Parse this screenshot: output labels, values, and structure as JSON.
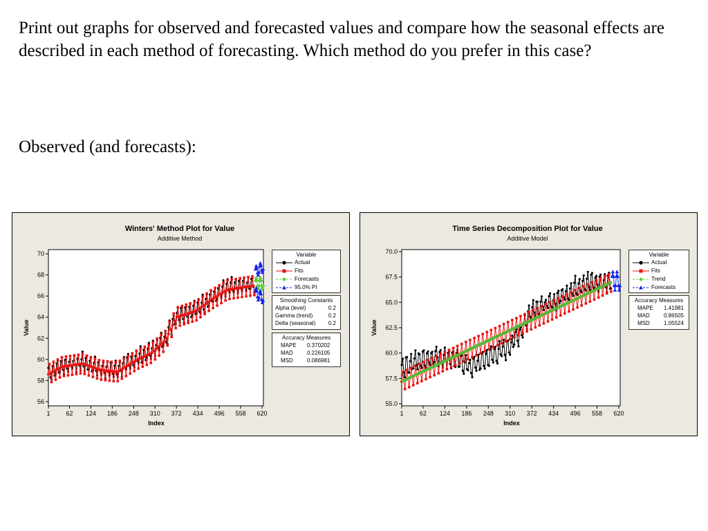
{
  "text": {
    "question": "Print out graphs for observed and forecasted values and compare how the seasonal effects are described in each method of forecasting. Which method do you prefer in this case?",
    "subheading": "Observed (and forecasts):"
  },
  "colors": {
    "actual": "#000000",
    "fits": "#ee1111",
    "trend": "#55bb33",
    "forecast_green": "#66cc44",
    "forecast_blue": "#1122ee",
    "panel_bg": "#ece9e0"
  },
  "chart_data": [
    {
      "type": "line",
      "title": "Winters' Method Plot for Value",
      "subtitle": "Additive Method",
      "xlabel": "Index",
      "ylabel": "Value",
      "xlim": [
        1,
        624
      ],
      "ylim": [
        55.6,
        70.4
      ],
      "x_ticks": [
        1,
        62,
        124,
        186,
        248,
        310,
        372,
        434,
        496,
        558,
        620
      ],
      "y_ticks": [
        56,
        58,
        60,
        62,
        64,
        66,
        68,
        70
      ],
      "y_tick_labels": [
        "56",
        "58",
        "60",
        "62",
        "64",
        "66",
        "68",
        "70"
      ],
      "legend": {
        "title": "Variable",
        "position": "right",
        "items": [
          {
            "label": "Actual",
            "color": "#000000",
            "marker": "circle",
            "dash": false
          },
          {
            "label": "Fits",
            "color": "#ee1111",
            "marker": "square",
            "dash": false
          },
          {
            "label": "Forecasts",
            "color": "#66cc44",
            "marker": "diamond",
            "dash": true
          },
          {
            "label": "95.0% PI",
            "color": "#1122ee",
            "marker": "triangle",
            "dash": true
          }
        ]
      },
      "smoothing_constants": {
        "title": "Smoothing Constants",
        "rows": [
          {
            "label": "Alpha (level)",
            "value": "0.2"
          },
          {
            "label": "Gamma (trend)",
            "value": "0.2"
          },
          {
            "label": "Delta (seasonal)",
            "value": "0.2"
          }
        ]
      },
      "accuracy_measures": {
        "title": "Accuracy Measures",
        "rows": [
          {
            "label": "MAPE",
            "value": "0.370202"
          },
          {
            "label": "MAD",
            "value": "0.226105"
          },
          {
            "label": "MSD",
            "value": "0.086981"
          }
        ]
      },
      "series": [
        {
          "name": "Actual",
          "trend": [
            [
              1,
              58.8
            ],
            [
              40,
              59.4
            ],
            [
              100,
              59.8
            ],
            [
              150,
              59.2
            ],
            [
              200,
              59.0
            ],
            [
              260,
              60.2
            ],
            [
              300,
              60.8
            ],
            [
              340,
              62.0
            ],
            [
              372,
              64.2
            ],
            [
              430,
              64.8
            ],
            [
              470,
              65.8
            ],
            [
              520,
              66.8
            ],
            [
              600,
              67.2
            ]
          ],
          "seasonal_amplitude": 0.8,
          "period": 12,
          "noise": 0.25
        },
        {
          "name": "Fits",
          "trend": [
            [
              1,
              58.6
            ],
            [
              40,
              59.3
            ],
            [
              100,
              59.6
            ],
            [
              150,
              59.0
            ],
            [
              200,
              58.8
            ],
            [
              260,
              60.0
            ],
            [
              300,
              60.6
            ],
            [
              340,
              61.8
            ],
            [
              372,
              64.0
            ],
            [
              430,
              64.6
            ],
            [
              470,
              65.6
            ],
            [
              520,
              66.6
            ],
            [
              600,
              67.0
            ]
          ],
          "seasonal_amplitude": 0.9,
          "period": 12
        },
        {
          "name": "Forecasts",
          "x_range": [
            601,
            624
          ],
          "center": 67.2,
          "amplitude": 0.5
        },
        {
          "name": "95.0% PI",
          "x_range": [
            601,
            624
          ],
          "lower": 66.3,
          "upper": 68.3,
          "widening": 1.0
        }
      ]
    },
    {
      "type": "line",
      "title": "Time Series Decomposition Plot for Value",
      "subtitle": "Additive Model",
      "xlabel": "Index",
      "ylabel": "Value",
      "xlim": [
        1,
        624
      ],
      "ylim": [
        54.8,
        70.2
      ],
      "x_ticks": [
        1,
        62,
        124,
        186,
        248,
        310,
        372,
        434,
        496,
        558,
        620
      ],
      "y_ticks": [
        55,
        57.5,
        60,
        62.5,
        65,
        67.5,
        70
      ],
      "y_tick_labels": [
        "55.0",
        "57.5",
        "60.0",
        "62.5",
        "65.0",
        "67.5",
        "70.0"
      ],
      "legend": {
        "title": "Variable",
        "position": "right",
        "items": [
          {
            "label": "Actual",
            "color": "#000000",
            "marker": "circle",
            "dash": false
          },
          {
            "label": "Fits",
            "color": "#ee1111",
            "marker": "square",
            "dash": false
          },
          {
            "label": "Trend",
            "color": "#66cc44",
            "marker": "diamond",
            "dash": true
          },
          {
            "label": "Forecasts",
            "color": "#1122ee",
            "marker": "triangle",
            "dash": true
          }
        ]
      },
      "accuracy_measures": {
        "title": "Accuracy Measures",
        "rows": [
          {
            "label": "MAPE",
            "value": "1.41981"
          },
          {
            "label": "MAD",
            "value": "0.86505"
          },
          {
            "label": "MSD",
            "value": "1.05524"
          }
        ]
      },
      "series": [
        {
          "name": "Actual",
          "trend": [
            [
              1,
              58.6
            ],
            [
              40,
              59.2
            ],
            [
              100,
              59.8
            ],
            [
              150,
              59.4
            ],
            [
              200,
              58.6
            ],
            [
              260,
              59.8
            ],
            [
              300,
              60.4
            ],
            [
              340,
              62.0
            ],
            [
              372,
              64.4
            ],
            [
              430,
              65.0
            ],
            [
              470,
              66.0
            ],
            [
              520,
              67.0
            ],
            [
              600,
              67.0
            ]
          ],
          "seasonal_amplitude": 0.9,
          "period": 12,
          "noise": 0.35
        },
        {
          "name": "Fits",
          "start": 57.2,
          "end": 67.0,
          "seasonal_amplitude": 0.9,
          "period": 12
        },
        {
          "name": "Trend",
          "start": 57.2,
          "end": 67.0
        },
        {
          "name": "Forecasts",
          "x_range": [
            601,
            624
          ],
          "center": 67.1,
          "amplitude": 0.9
        }
      ]
    }
  ]
}
